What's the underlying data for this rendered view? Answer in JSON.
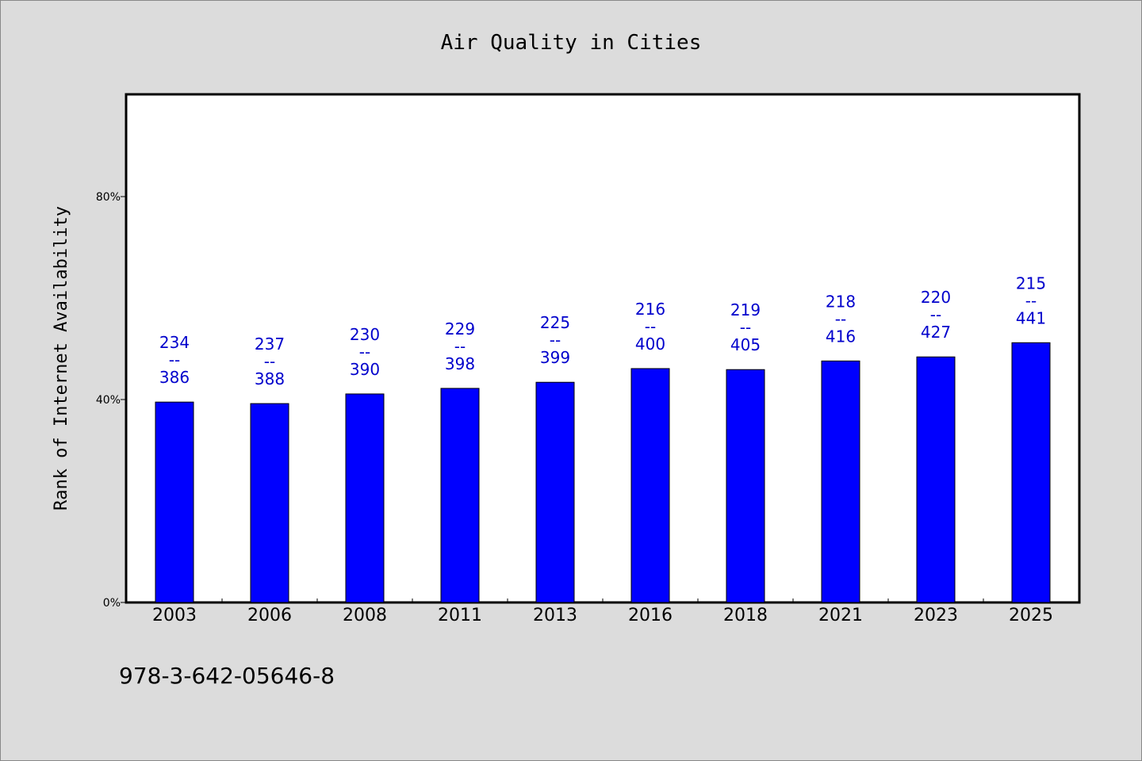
{
  "chart_data": {
    "type": "bar",
    "title": "Air Quality in Cities",
    "xlabel": "",
    "ylabel": "Rank of Internet Availability",
    "categories": [
      "2003",
      "2006",
      "2008",
      "2011",
      "2013",
      "2016",
      "2018",
      "2021",
      "2023",
      "2025"
    ],
    "series": [
      {
        "values": [
          39.5,
          39.2,
          41.1,
          42.2,
          43.4,
          46.1,
          45.9,
          47.6,
          48.4,
          51.2
        ],
        "color": "#0000ff"
      }
    ],
    "data_labels": [
      {
        "top": "234",
        "sep": "--",
        "bottom": "386"
      },
      {
        "top": "237",
        "sep": "--",
        "bottom": "388"
      },
      {
        "top": "230",
        "sep": "--",
        "bottom": "390"
      },
      {
        "top": "229",
        "sep": "--",
        "bottom": "398"
      },
      {
        "top": "225",
        "sep": "--",
        "bottom": "399"
      },
      {
        "top": "216",
        "sep": "--",
        "bottom": "400"
      },
      {
        "top": "219",
        "sep": "--",
        "bottom": "405"
      },
      {
        "top": "218",
        "sep": "--",
        "bottom": "416"
      },
      {
        "top": "220",
        "sep": "--",
        "bottom": "427"
      },
      {
        "top": "215",
        "sep": "--",
        "bottom": "441"
      }
    ],
    "ylim": [
      0,
      100
    ],
    "yticks": [
      0,
      40,
      80
    ],
    "ytick_labels": [
      "0%",
      "40%",
      "80%"
    ],
    "grid": false,
    "label_color": "#0000cc"
  },
  "footer_text": "978-3-642-05646-8"
}
